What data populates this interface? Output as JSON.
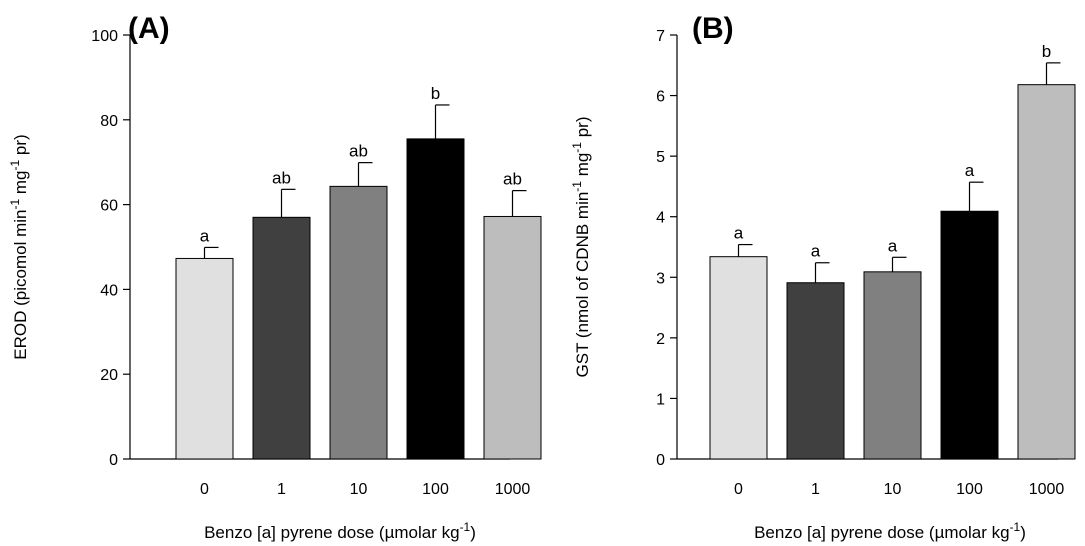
{
  "chart_data": [
    {
      "type": "bar",
      "panel_label": "(A)",
      "categories": [
        "0",
        "1",
        "10",
        "100",
        "1000"
      ],
      "values": [
        47.3,
        57.0,
        64.3,
        75.5,
        57.2
      ],
      "errors": [
        2.6,
        6.6,
        5.6,
        8.0,
        6.1
      ],
      "significance": [
        "a",
        "ab",
        "ab",
        "b",
        "ab"
      ],
      "colors": [
        "#e0e0e0",
        "#404040",
        "#808080",
        "#000000",
        "#bdbdbd"
      ],
      "xlabel": {
        "main": "Benzo [a] pyrene dose (µmolar kg",
        "sup": "-1",
        "end": ")"
      },
      "ylabel": {
        "p1": "EROD (picomol min",
        "s1": "-1",
        "p2": " mg",
        "s2": "-1",
        "p3": " pr)"
      },
      "ylim": [
        0,
        100
      ],
      "yticks": [
        "0",
        "20",
        "40",
        "60",
        "80",
        "100"
      ],
      "grid": false
    },
    {
      "type": "bar",
      "panel_label": "(B)",
      "categories": [
        "0",
        "1",
        "10",
        "100",
        "1000"
      ],
      "values": [
        3.34,
        2.91,
        3.09,
        4.09,
        6.18
      ],
      "errors": [
        0.2,
        0.33,
        0.24,
        0.48,
        0.36
      ],
      "significance": [
        "a",
        "a",
        "a",
        "a",
        "b"
      ],
      "colors": [
        "#e0e0e0",
        "#404040",
        "#808080",
        "#000000",
        "#bdbdbd"
      ],
      "xlabel": {
        "main": "Benzo [a] pyrene dose (µmolar kg",
        "sup": "-1",
        "end": ")"
      },
      "ylabel": {
        "p1": "GST (nmol of CDNB  min",
        "s1": "-1",
        "p2": " mg",
        "s2": "-1",
        "p3": " pr)"
      },
      "ylim": [
        0,
        7
      ],
      "yticks": [
        "0",
        "1",
        "2",
        "3",
        "4",
        "5",
        "6",
        "7"
      ],
      "grid": false
    }
  ]
}
